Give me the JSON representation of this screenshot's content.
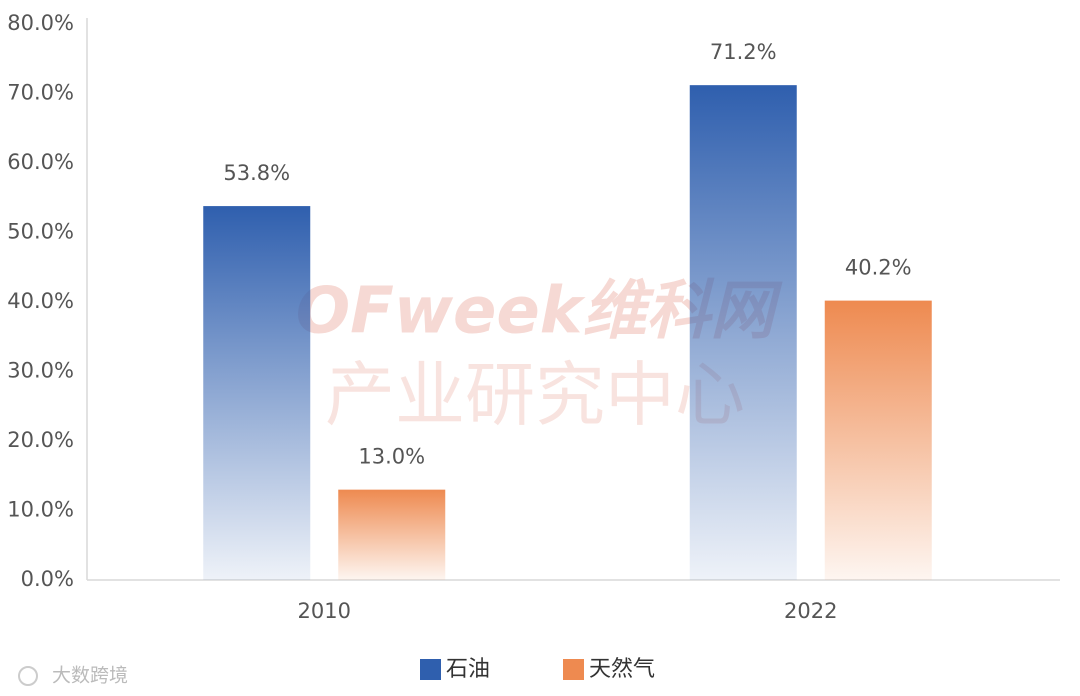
{
  "chart_data": {
    "type": "bar",
    "categories": [
      "2010",
      "2022"
    ],
    "series": [
      {
        "name": "石油",
        "color": "#2f5fae",
        "values": [
          53.8,
          71.2
        ],
        "value_labels": [
          "53.8%",
          "71.2%"
        ]
      },
      {
        "name": "天然气",
        "color": "#ee8a50",
        "values": [
          13.0,
          40.2
        ],
        "value_labels": [
          "13.0%",
          "40.2%"
        ]
      }
    ],
    "ylim": [
      0,
      80
    ],
    "yticks": [
      {
        "value": 0,
        "label": "0.0%"
      },
      {
        "value": 10,
        "label": "10.0%"
      },
      {
        "value": 20,
        "label": "20.0%"
      },
      {
        "value": 30,
        "label": "30.0%"
      },
      {
        "value": 40,
        "label": "40.0%"
      },
      {
        "value": 50,
        "label": "50.0%"
      },
      {
        "value": 60,
        "label": "60.0%"
      },
      {
        "value": 70,
        "label": "70.0%"
      },
      {
        "value": 80,
        "label": "80.0%"
      }
    ],
    "grid": false,
    "legend": "bottom"
  },
  "watermarks": [
    "OFweek维科网",
    "产业研究中心",
    "大数跨境"
  ]
}
